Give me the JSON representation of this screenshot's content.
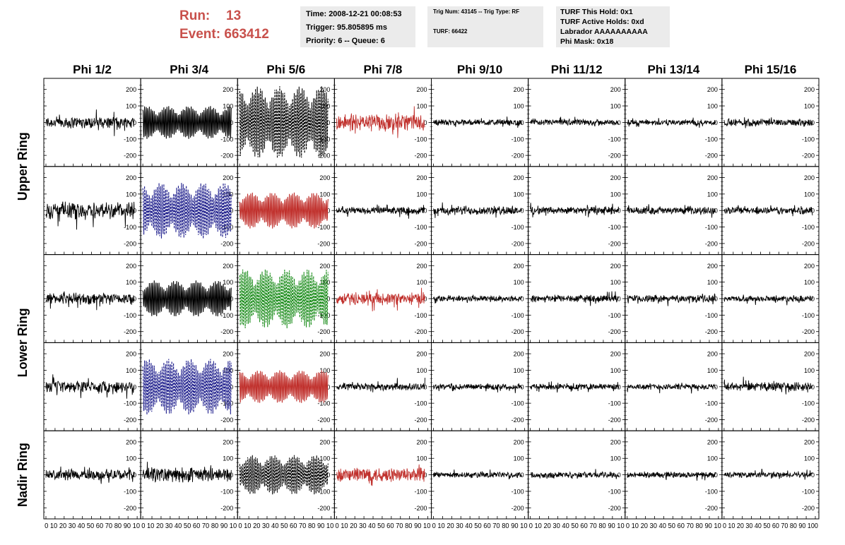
{
  "header": {
    "run_label": "Run:",
    "run_value": "13",
    "event_label": "Event:",
    "event_value": "663412",
    "time": "Time: 2008-12-21 00:08:53",
    "trigger": "Trigger: 95.805895 ms",
    "priority": "Priority: 6 -- Queue: 6",
    "trig_num": "Trig Num: 43145 -- Trig Type: RF",
    "turf": "TURF: 66422",
    "turf_hold": "TURF This Hold: 0x1",
    "turf_active": "TURF Active Holds: 0xd",
    "labrador": "Labrador AAAAAAAAAA",
    "phi_mask": "Phi Mask: 0x18"
  },
  "colors": {
    "black": "#000000",
    "red": "#c0302c",
    "blue": "#1e1e8c",
    "green": "#1a8c1a",
    "header_red": "#c8504b",
    "panel_bg": "#ebebeb"
  },
  "chart_data": {
    "type": "line",
    "columns": [
      "Phi 1/2",
      "Phi 3/4",
      "Phi 5/6",
      "Phi 7/8",
      "Phi 9/10",
      "Phi 11/12",
      "Phi 13/14",
      "Phi 15/16"
    ],
    "ring_labels": [
      "Upper Ring",
      "Lower Ring",
      "Nadir Ring"
    ],
    "y_ticks": [
      -200,
      -100,
      0,
      100,
      200
    ],
    "y_range": [
      -250,
      250
    ],
    "x_range": [
      0,
      100
    ],
    "x_ticks": [
      0,
      10,
      20,
      30,
      40,
      50,
      60,
      70,
      80,
      90,
      100
    ],
    "x_tick_text": "0 10 20 30 40 50 60 70 80 90 10",
    "x_tick_text_last": "0 10 20 30 40 50 60 70 80 90 100",
    "trace_style": [
      [
        "black",
        "black",
        "black-dashed",
        "red",
        "black",
        "black",
        "black",
        "black"
      ],
      [
        "black",
        "blue-dashed",
        "red",
        "black",
        "black",
        "black",
        "black",
        "black"
      ],
      [
        "black",
        "black",
        "green-dashed",
        "red",
        "black",
        "black",
        "black",
        "black"
      ],
      [
        "black",
        "blue-dashed",
        "red",
        "black",
        "black",
        "black",
        "black",
        "black"
      ],
      [
        "black",
        "black",
        "black-dashed",
        "red",
        "black",
        "black",
        "black",
        "black"
      ]
    ],
    "trace_amplitude": [
      [
        40,
        100,
        220,
        60,
        20,
        20,
        20,
        25
      ],
      [
        60,
        170,
        110,
        25,
        30,
        25,
        25,
        25
      ],
      [
        40,
        110,
        180,
        40,
        20,
        25,
        25,
        20
      ],
      [
        40,
        170,
        100,
        25,
        20,
        20,
        20,
        30
      ],
      [
        35,
        50,
        120,
        50,
        20,
        20,
        20,
        20
      ]
    ]
  }
}
